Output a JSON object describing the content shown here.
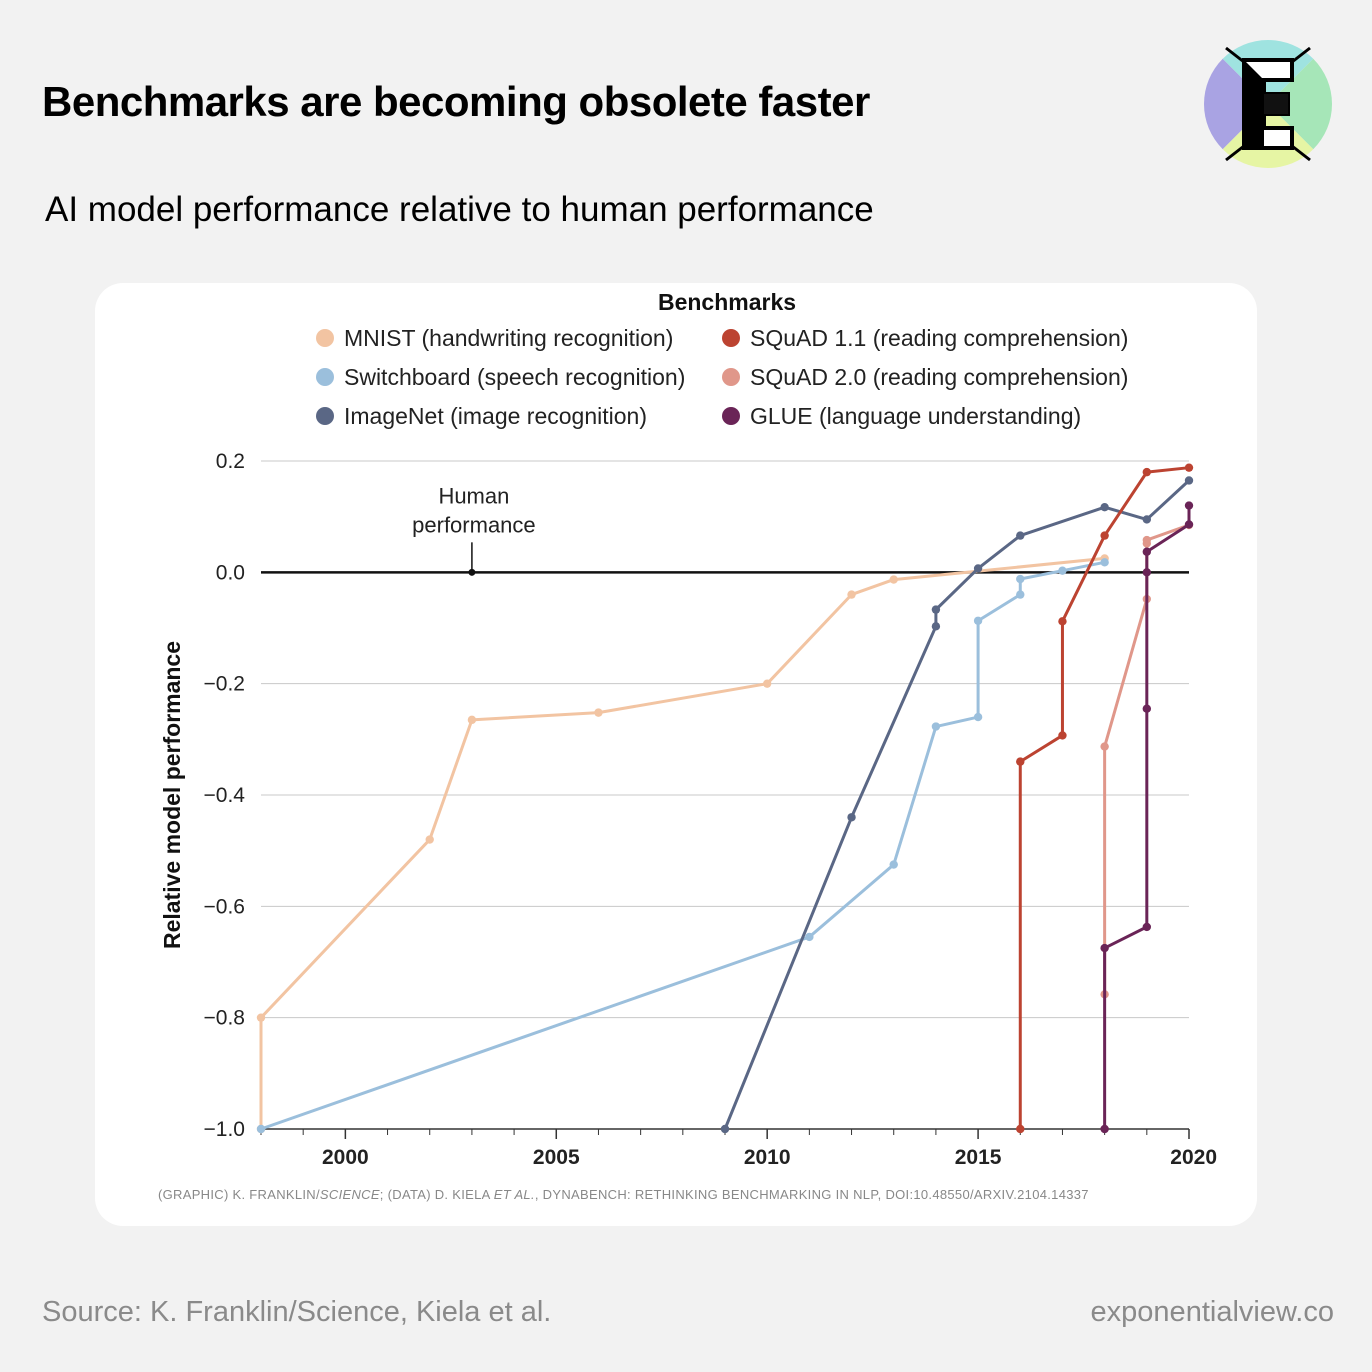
{
  "header": {
    "title": "Benchmarks are becoming obsolete faster",
    "subtitle": "AI model performance relative to human performance"
  },
  "logo": {
    "letter": "E",
    "colors": [
      "#a9a3e3",
      "#9fe3e0",
      "#a6e6b8",
      "#e6f5a4"
    ]
  },
  "footer": {
    "source": "Source: K. Franklin/Science, Kiela et al.",
    "site": "exponentialview.co"
  },
  "chart_data": {
    "type": "line",
    "legend_title": "Benchmarks",
    "legend_placement": "top",
    "ylabel": "Relative model performance",
    "xlabel": "",
    "xlim": [
      1998,
      2020
    ],
    "ylim": [
      -1.0,
      0.2
    ],
    "x_ticks": [
      2000,
      2005,
      2010,
      2015,
      2020
    ],
    "y_ticks": [
      0.2,
      0.0,
      -0.2,
      -0.4,
      -0.6,
      -0.8,
      -1.0
    ],
    "y_tick_labels": [
      "0.2",
      "0.0",
      "−0.2",
      "−0.4",
      "−0.6",
      "−0.8",
      "−1.0"
    ],
    "grid": "horizontal",
    "human_line_y": 0.0,
    "annotation": {
      "line1": "Human",
      "line2": "performance",
      "x": 2003,
      "y": 0.0
    },
    "credit": "(GRAPHIC) K. FRANKLIN/",
    "credit_italic": "SCIENCE",
    "credit_mid": "; (DATA) D. KIELA ",
    "credit_italic2": "ET AL.",
    "credit_end": ", DYNABENCH: RETHINKING BENCHMARKING IN NLP, DOI:10.48550/ARXIV.2104.14337",
    "series": [
      {
        "name": "MNIST (handwriting recognition)",
        "color": "#f2c4a2",
        "points": [
          [
            1998,
            -1.0
          ],
          [
            1998,
            -0.8
          ],
          [
            2002,
            -0.48
          ],
          [
            2003,
            -0.265
          ],
          [
            2006,
            -0.252
          ],
          [
            2010,
            -0.2
          ],
          [
            2012,
            -0.04
          ],
          [
            2013,
            -0.013
          ],
          [
            2018,
            0.025
          ]
        ]
      },
      {
        "name": "Switchboard (speech recognition)",
        "color": "#9bbfdc",
        "points": [
          [
            1998,
            -1.0
          ],
          [
            2011,
            -0.655
          ],
          [
            2013,
            -0.525
          ],
          [
            2014,
            -0.277
          ],
          [
            2015,
            -0.26
          ],
          [
            2015,
            -0.087
          ],
          [
            2016,
            -0.04
          ],
          [
            2016,
            -0.012
          ],
          [
            2017,
            0.003
          ],
          [
            2018,
            0.018
          ]
        ]
      },
      {
        "name": "ImageNet (image recognition)",
        "color": "#5a6785",
        "points": [
          [
            2009,
            -1.0
          ],
          [
            2012,
            -0.44
          ],
          [
            2014,
            -0.097
          ],
          [
            2014,
            -0.067
          ],
          [
            2015,
            0.007
          ],
          [
            2016,
            0.066
          ],
          [
            2018,
            0.117
          ],
          [
            2019,
            0.095
          ],
          [
            2020,
            0.165
          ]
        ]
      },
      {
        "name": "SQuAD 1.1 (reading comprehension)",
        "color": "#bc4331",
        "points": [
          [
            2016,
            -1.0
          ],
          [
            2016,
            -0.34
          ],
          [
            2017,
            -0.293
          ],
          [
            2017,
            -0.088
          ],
          [
            2018,
            0.066
          ],
          [
            2019,
            0.18
          ],
          [
            2020,
            0.188
          ]
        ]
      },
      {
        "name": "SQuAD 2.0 (reading comprehension)",
        "color": "#e0978a",
        "points": [
          [
            2018,
            -0.758
          ],
          [
            2018,
            -0.313
          ],
          [
            2019,
            -0.048
          ],
          [
            2019,
            0.052
          ],
          [
            2019,
            0.058
          ],
          [
            2020,
            0.085
          ]
        ]
      },
      {
        "name": "GLUE (language understanding)",
        "color": "#6a2457",
        "points": [
          [
            2018,
            -1.0
          ],
          [
            2018,
            -0.675
          ],
          [
            2019,
            -0.637
          ],
          [
            2019,
            -0.245
          ],
          [
            2019,
            0.0
          ],
          [
            2019,
            0.037
          ],
          [
            2020,
            0.086
          ],
          [
            2020,
            0.12
          ]
        ]
      }
    ]
  }
}
